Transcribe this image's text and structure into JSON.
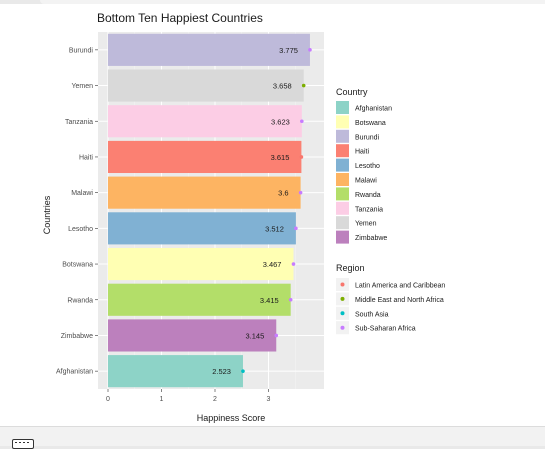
{
  "chart_data": {
    "type": "bar",
    "orientation": "horizontal",
    "title": "Bottom Ten Happiest Countries",
    "xlabel": "Happiness Score",
    "ylabel": "Countries",
    "xlim": [
      0,
      4
    ],
    "x_ticks": [
      0,
      1,
      2,
      3
    ],
    "grid": true,
    "legend_position": "right",
    "categories": [
      "Burundi",
      "Yemen",
      "Tanzania",
      "Haiti",
      "Malawi",
      "Lesotho",
      "Botswana",
      "Rwanda",
      "Zimbabwe",
      "Afghanistan"
    ],
    "values": [
      3.775,
      3.658,
      3.623,
      3.615,
      3.6,
      3.512,
      3.467,
      3.415,
      3.145,
      2.523
    ],
    "labels": [
      "3.775",
      "3.658",
      "3.623",
      "3.615",
      "3.6",
      "3.512",
      "3.467",
      "3.415",
      "3.145",
      "2.523"
    ],
    "regions": [
      "Sub-Saharan Africa",
      "Middle East and North Africa",
      "Sub-Saharan Africa",
      "Latin America and Caribbean",
      "Sub-Saharan Africa",
      "Sub-Saharan Africa",
      "Sub-Saharan Africa",
      "Sub-Saharan Africa",
      "Sub-Saharan Africa",
      "South Asia"
    ],
    "legend_country": {
      "title": "Country",
      "items": [
        {
          "name": "Afghanistan",
          "color": "#8dd3c7"
        },
        {
          "name": "Botswana",
          "color": "#ffffb3"
        },
        {
          "name": "Burundi",
          "color": "#bebada"
        },
        {
          "name": "Haiti",
          "color": "#fb8072"
        },
        {
          "name": "Lesotho",
          "color": "#80b1d3"
        },
        {
          "name": "Malawi",
          "color": "#fdb462"
        },
        {
          "name": "Rwanda",
          "color": "#b3de69"
        },
        {
          "name": "Tanzania",
          "color": "#fccde5"
        },
        {
          "name": "Yemen",
          "color": "#d9d9d9"
        },
        {
          "name": "Zimbabwe",
          "color": "#bc80bd"
        }
      ]
    },
    "legend_region": {
      "title": "Region",
      "items": [
        {
          "name": "Latin America and Caribbean",
          "color": "#f8766d"
        },
        {
          "name": "Middle East and North Africa",
          "color": "#7cae00"
        },
        {
          "name": "South Asia",
          "color": "#00bfc4"
        },
        {
          "name": "Sub-Saharan Africa",
          "color": "#c77cff"
        }
      ]
    }
  }
}
